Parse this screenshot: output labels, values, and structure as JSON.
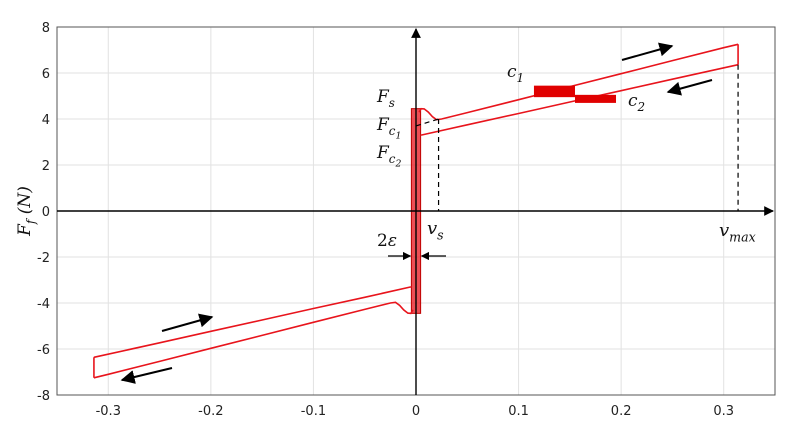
{
  "chart_data": {
    "type": "line",
    "title": "",
    "xlabel": "",
    "ylabel": "F_f (N)",
    "xlim": [
      -0.35,
      0.35
    ],
    "ylim": [
      -8,
      8
    ],
    "grid": true,
    "xticks": [
      -0.3,
      -0.2,
      -0.1,
      0,
      0.1,
      0.2,
      0.3
    ],
    "xtick_labels": [
      "-0.3",
      "-0.2",
      "-0.1",
      "0",
      "0.1",
      "0.2",
      "0.3"
    ],
    "yticks": [
      -8,
      -6,
      -4,
      -2,
      0,
      2,
      4,
      6,
      8
    ],
    "ytick_labels": [
      "-8",
      "-6",
      "-4",
      "-2",
      "0",
      "2",
      "4",
      "6",
      "8"
    ],
    "params": {
      "F_s": 4.45,
      "F_c1": 3.7,
      "F_c2": 3.25,
      "v_s": 0.022,
      "v_max": 0.314,
      "epsilon": 0.0045,
      "c_1": 11.3,
      "c_2": 9.9
    },
    "series": [
      {
        "x": [
          0.003,
          0.005,
          0.008,
          0.012,
          0.016,
          0.02,
          0.025,
          0.05,
          0.1,
          0.15,
          0.2,
          0.25,
          0.3,
          0.314
        ],
        "y": [
          4.3,
          4.45,
          4.44,
          4.3,
          4.1,
          3.97,
          4.0,
          4.28,
          4.84,
          5.41,
          5.97,
          6.54,
          7.1,
          7.25
        ]
      },
      {
        "x": [
          0.314,
          0.25,
          0.2,
          0.15,
          0.1,
          0.05,
          0.005
        ],
        "y": [
          6.36,
          5.73,
          5.23,
          4.74,
          4.24,
          3.75,
          3.3
        ]
      },
      {
        "x": [
          -0.003,
          -0.005,
          -0.008,
          -0.012,
          -0.016,
          -0.02,
          -0.025,
          -0.05,
          -0.1,
          -0.15,
          -0.2,
          -0.25,
          -0.3,
          -0.314
        ],
        "y": [
          -4.3,
          -4.45,
          -4.44,
          -4.3,
          -4.1,
          -3.97,
          -4.0,
          -4.28,
          -4.84,
          -5.41,
          -5.97,
          -6.54,
          -7.1,
          -7.25
        ]
      },
      {
        "x": [
          -0.314,
          -0.25,
          -0.2,
          -0.15,
          -0.1,
          -0.05,
          -0.005
        ],
        "y": [
          -6.36,
          -5.73,
          -5.23,
          -4.74,
          -4.24,
          -3.75,
          -3.3
        ]
      }
    ],
    "epsilon_band": {
      "x": [
        -0.0045,
        0.0045
      ],
      "y": [
        -4.45,
        4.45
      ]
    },
    "slope_markers": [
      {
        "label": "c_1",
        "x": [
          0.115,
          0.155
        ],
        "y": [
          5.45,
          4.95
        ]
      },
      {
        "label": "c_2",
        "x": [
          0.155,
          0.195
        ],
        "y": [
          5.05,
          4.7
        ]
      }
    ],
    "annotations": {
      "F_s": "F_s",
      "F_c1": "F_c_1",
      "F_c2": "F_c_2",
      "v_s": "v_s",
      "v_max": "v_max",
      "two_eps": "2ε",
      "c1": "c_1",
      "c2": "c_2"
    },
    "colors": {
      "curve": "#e8141c",
      "band": "#e8141c",
      "grid": "#e2e2e2",
      "axis": "#000000"
    }
  }
}
